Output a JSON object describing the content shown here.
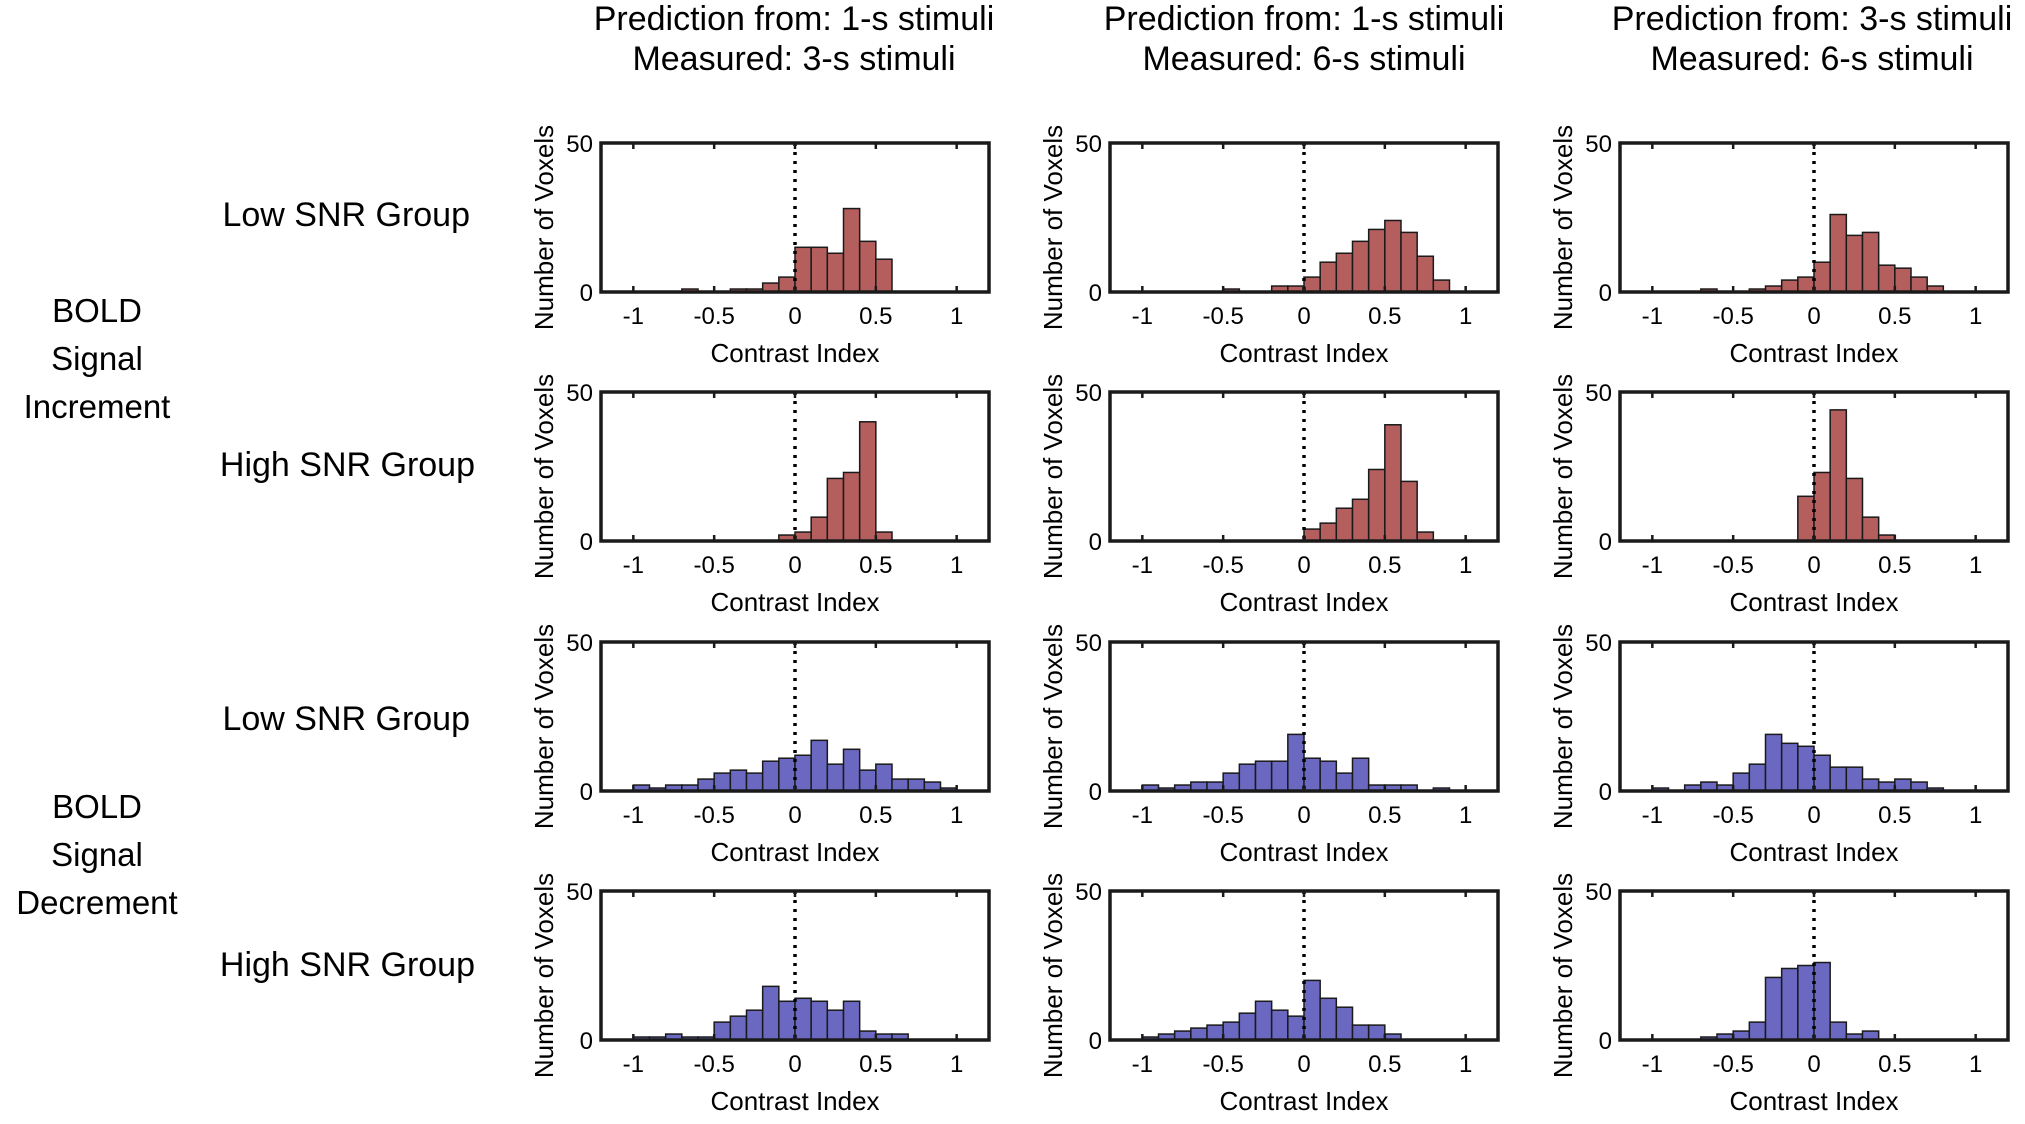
{
  "column_titles": [
    {
      "line1": "Prediction from: 1-s stimuli",
      "line2": "Measured: 3-s stimuli"
    },
    {
      "line1": "Prediction from: 1-s stimuli",
      "line2": "Measured: 6-s stimuli"
    },
    {
      "line1": "Prediction from: 3-s stimuli",
      "line2": "Measured: 6-s stimuli"
    }
  ],
  "group_labels": [
    {
      "lines": [
        "BOLD",
        "Signal",
        "Increment"
      ]
    },
    {
      "lines": [
        "BOLD",
        "Signal",
        "Decrement"
      ]
    }
  ],
  "row_labels": [
    "Low SNR Group",
    "High SNR Group",
    "Low SNR Group",
    "High SNR Group"
  ],
  "colors": {
    "increment": "#b55e5e",
    "decrement": "#6a68c0",
    "axis": "#1a1a1a"
  },
  "chart_data": {
    "type": "bar",
    "kind": "histogram-grid",
    "xlabel": "Contrast Index",
    "ylabel": "Number of Voxels",
    "xlim": [
      -1.2,
      1.2
    ],
    "ylim": [
      0,
      50
    ],
    "xticks": [
      -1,
      -0.5,
      0,
      0.5,
      1
    ],
    "xtick_labels": [
      "-1",
      "-0.5",
      "0",
      "0.5",
      "1"
    ],
    "yticks": [
      0,
      50
    ],
    "ytick_labels": [
      "0",
      "50"
    ],
    "reference_line_x": 0,
    "bin_width": 0.1,
    "panels": [
      {
        "row": 0,
        "col": 0,
        "color": "increment",
        "bins": [
          [
            -0.7,
            1
          ],
          [
            -0.4,
            1
          ],
          [
            -0.3,
            1
          ],
          [
            -0.2,
            3
          ],
          [
            -0.1,
            5
          ],
          [
            0,
            15
          ],
          [
            0.1,
            15
          ],
          [
            0.2,
            13
          ],
          [
            0.3,
            28
          ],
          [
            0.4,
            17
          ],
          [
            0.5,
            11
          ]
        ]
      },
      {
        "row": 0,
        "col": 1,
        "color": "increment",
        "bins": [
          [
            -0.5,
            1
          ],
          [
            -0.2,
            2
          ],
          [
            -0.1,
            2
          ],
          [
            0,
            5
          ],
          [
            0.1,
            10
          ],
          [
            0.2,
            13
          ],
          [
            0.3,
            17
          ],
          [
            0.4,
            21
          ],
          [
            0.5,
            24
          ],
          [
            0.6,
            20
          ],
          [
            0.7,
            12
          ],
          [
            0.8,
            4
          ]
        ]
      },
      {
        "row": 0,
        "col": 2,
        "color": "increment",
        "bins": [
          [
            -0.7,
            1
          ],
          [
            -0.4,
            1
          ],
          [
            -0.3,
            2
          ],
          [
            -0.2,
            4
          ],
          [
            -0.1,
            5
          ],
          [
            0,
            10
          ],
          [
            0.1,
            26
          ],
          [
            0.2,
            19
          ],
          [
            0.3,
            20
          ],
          [
            0.4,
            9
          ],
          [
            0.5,
            8
          ],
          [
            0.6,
            5
          ],
          [
            0.7,
            2
          ]
        ]
      },
      {
        "row": 1,
        "col": 0,
        "color": "increment",
        "bins": [
          [
            -0.1,
            2
          ],
          [
            0,
            3
          ],
          [
            0.1,
            8
          ],
          [
            0.2,
            21
          ],
          [
            0.3,
            23
          ],
          [
            0.4,
            40
          ],
          [
            0.5,
            3
          ]
        ]
      },
      {
        "row": 1,
        "col": 1,
        "color": "increment",
        "bins": [
          [
            0,
            4
          ],
          [
            0.1,
            6
          ],
          [
            0.2,
            11
          ],
          [
            0.3,
            14
          ],
          [
            0.4,
            24
          ],
          [
            0.5,
            39
          ],
          [
            0.6,
            20
          ],
          [
            0.7,
            3
          ]
        ]
      },
      {
        "row": 1,
        "col": 2,
        "color": "increment",
        "bins": [
          [
            -0.1,
            15
          ],
          [
            0,
            23
          ],
          [
            0.1,
            44
          ],
          [
            0.2,
            21
          ],
          [
            0.3,
            8
          ],
          [
            0.4,
            2
          ]
        ]
      },
      {
        "row": 2,
        "col": 0,
        "color": "decrement",
        "bins": [
          [
            -1,
            2
          ],
          [
            -0.9,
            1
          ],
          [
            -0.8,
            2
          ],
          [
            -0.7,
            2
          ],
          [
            -0.6,
            4
          ],
          [
            -0.5,
            6
          ],
          [
            -0.4,
            7
          ],
          [
            -0.3,
            6
          ],
          [
            -0.2,
            10
          ],
          [
            -0.1,
            11
          ],
          [
            0,
            12
          ],
          [
            0.1,
            17
          ],
          [
            0.2,
            9
          ],
          [
            0.3,
            14
          ],
          [
            0.4,
            7
          ],
          [
            0.5,
            9
          ],
          [
            0.6,
            4
          ],
          [
            0.7,
            4
          ],
          [
            0.8,
            3
          ],
          [
            0.9,
            1
          ]
        ]
      },
      {
        "row": 2,
        "col": 1,
        "color": "decrement",
        "bins": [
          [
            -1,
            2
          ],
          [
            -0.9,
            1
          ],
          [
            -0.8,
            2
          ],
          [
            -0.7,
            3
          ],
          [
            -0.6,
            3
          ],
          [
            -0.5,
            6
          ],
          [
            -0.4,
            9
          ],
          [
            -0.3,
            10
          ],
          [
            -0.2,
            10
          ],
          [
            -0.1,
            19
          ],
          [
            0,
            11
          ],
          [
            0.1,
            10
          ],
          [
            0.2,
            6
          ],
          [
            0.3,
            11
          ],
          [
            0.4,
            2
          ],
          [
            0.5,
            2
          ],
          [
            0.6,
            2
          ],
          [
            0.8,
            1
          ]
        ]
      },
      {
        "row": 2,
        "col": 2,
        "color": "decrement",
        "bins": [
          [
            -1,
            1
          ],
          [
            -0.8,
            2
          ],
          [
            -0.7,
            3
          ],
          [
            -0.6,
            2
          ],
          [
            -0.5,
            6
          ],
          [
            -0.4,
            9
          ],
          [
            -0.3,
            19
          ],
          [
            -0.2,
            16
          ],
          [
            -0.1,
            15
          ],
          [
            0,
            12
          ],
          [
            0.1,
            8
          ],
          [
            0.2,
            8
          ],
          [
            0.3,
            4
          ],
          [
            0.4,
            3
          ],
          [
            0.5,
            4
          ],
          [
            0.6,
            3
          ],
          [
            0.7,
            1
          ]
        ]
      },
      {
        "row": 3,
        "col": 0,
        "color": "decrement",
        "bins": [
          [
            -1,
            1
          ],
          [
            -0.9,
            1
          ],
          [
            -0.8,
            2
          ],
          [
            -0.7,
            1
          ],
          [
            -0.6,
            1
          ],
          [
            -0.5,
            6
          ],
          [
            -0.4,
            8
          ],
          [
            -0.3,
            10
          ],
          [
            -0.2,
            18
          ],
          [
            -0.1,
            13
          ],
          [
            0,
            14
          ],
          [
            0.1,
            13
          ],
          [
            0.2,
            10
          ],
          [
            0.3,
            13
          ],
          [
            0.4,
            3
          ],
          [
            0.5,
            2
          ],
          [
            0.6,
            2
          ]
        ]
      },
      {
        "row": 3,
        "col": 1,
        "color": "decrement",
        "bins": [
          [
            -1,
            1
          ],
          [
            -0.9,
            2
          ],
          [
            -0.8,
            3
          ],
          [
            -0.7,
            4
          ],
          [
            -0.6,
            5
          ],
          [
            -0.5,
            6
          ],
          [
            -0.4,
            9
          ],
          [
            -0.3,
            13
          ],
          [
            -0.2,
            10
          ],
          [
            -0.1,
            8
          ],
          [
            0,
            20
          ],
          [
            0.1,
            14
          ],
          [
            0.2,
            11
          ],
          [
            0.3,
            5
          ],
          [
            0.4,
            5
          ],
          [
            0.5,
            2
          ]
        ]
      },
      {
        "row": 3,
        "col": 2,
        "color": "decrement",
        "bins": [
          [
            -0.7,
            1
          ],
          [
            -0.6,
            2
          ],
          [
            -0.5,
            3
          ],
          [
            -0.4,
            6
          ],
          [
            -0.3,
            21
          ],
          [
            -0.2,
            24
          ],
          [
            -0.1,
            25
          ],
          [
            0,
            26
          ],
          [
            0.1,
            6
          ],
          [
            0.2,
            2
          ],
          [
            0.3,
            3
          ]
        ]
      }
    ]
  }
}
